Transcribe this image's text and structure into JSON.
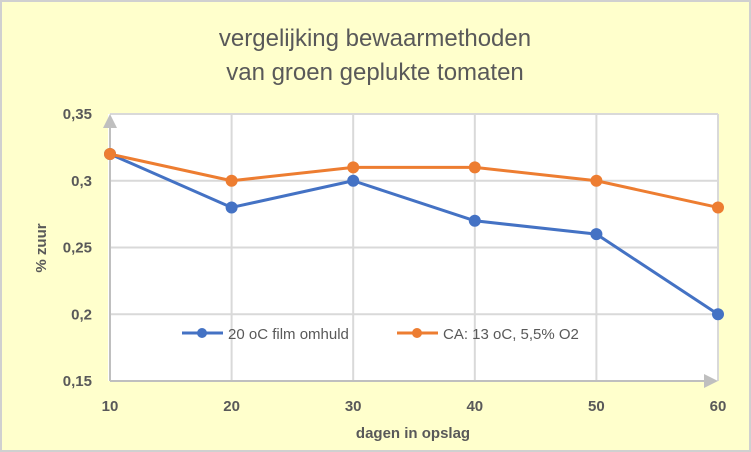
{
  "chart_data": {
    "type": "line",
    "title": [
      "vergelijking bewaarmethoden",
      "van groen geplukte tomaten"
    ],
    "xlabel": "dagen in opslag",
    "ylabel": "% zuur",
    "x": [
      10,
      20,
      30,
      40,
      50,
      60
    ],
    "xticks": [
      "10",
      "20",
      "30",
      "40",
      "50",
      "60"
    ],
    "yticks": [
      {
        "v": 0.15,
        "label": "0,15"
      },
      {
        "v": 0.2,
        "label": "0,2"
      },
      {
        "v": 0.25,
        "label": "0,25"
      },
      {
        "v": 0.3,
        "label": "0,3"
      },
      {
        "v": 0.35,
        "label": "0,35"
      }
    ],
    "xlim": [
      10,
      60
    ],
    "ylim": [
      0.15,
      0.35
    ],
    "grid": true,
    "legend_position": "inside-bottom-left",
    "series": [
      {
        "name": "20 oC film omhuld",
        "color": "#4472C4",
        "values": [
          0.32,
          0.28,
          0.3,
          0.27,
          0.26,
          0.2
        ]
      },
      {
        "name": "CA: 13 oC, 5,5% O2",
        "color": "#ED7D31",
        "values": [
          0.32,
          0.3,
          0.31,
          0.31,
          0.3,
          0.28
        ]
      }
    ],
    "background": "#FFFFCC"
  }
}
